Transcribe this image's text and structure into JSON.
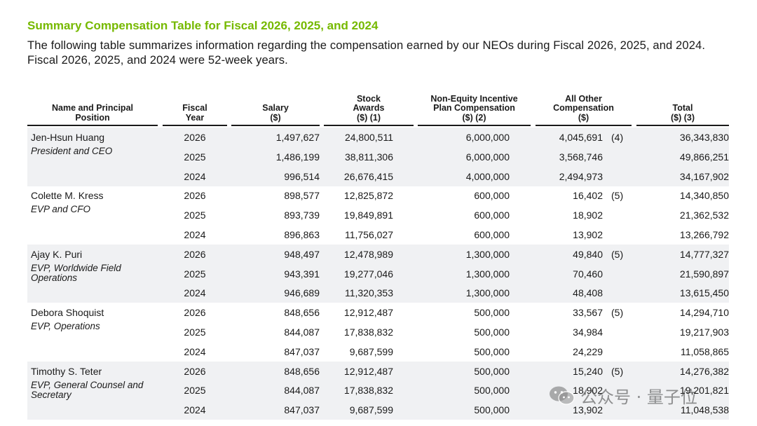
{
  "title": "Summary Compensation Table for Fiscal 2026, 2025, and 2024",
  "intro": "The following table summarizes information regarding the compensation earned by our NEOs during Fiscal 2026, 2025, and 2024.  Fiscal 2026, 2025, and 2024 were 52-week years.",
  "headers": {
    "name": [
      "Name and Principal",
      "Position"
    ],
    "fiscal_year": [
      "Fiscal",
      "Year"
    ],
    "salary": [
      "Salary",
      "($)"
    ],
    "stock_awards": [
      "Stock",
      "Awards",
      "($) (1)"
    ],
    "non_equity": [
      "Non-Equity Incentive",
      "Plan Compensation",
      "($) (2)"
    ],
    "all_other": [
      "All Other",
      "Compensation",
      "($)"
    ],
    "total": [
      "Total",
      "($) (3)"
    ]
  },
  "executives": [
    {
      "name": "Jen-Hsun Huang",
      "title_lines": [
        "President and CEO"
      ],
      "rows": [
        {
          "year": "2026",
          "salary": "1,497,627",
          "stock": "24,800,511",
          "nonequity": "6,000,000",
          "other": "4,045,691",
          "footnote": "(4)",
          "total": "36,343,830"
        },
        {
          "year": "2025",
          "salary": "1,486,199",
          "stock": "38,811,306",
          "nonequity": "6,000,000",
          "other": "3,568,746",
          "footnote": "",
          "total": "49,866,251"
        },
        {
          "year": "2024",
          "salary": "996,514",
          "stock": "26,676,415",
          "nonequity": "4,000,000",
          "other": "2,494,973",
          "footnote": "",
          "total": "34,167,902"
        }
      ]
    },
    {
      "name": "Colette M. Kress",
      "title_lines": [
        "EVP and CFO"
      ],
      "rows": [
        {
          "year": "2026",
          "salary": "898,577",
          "stock": "12,825,872",
          "nonequity": "600,000",
          "other": "16,402",
          "footnote": "(5)",
          "total": "14,340,850"
        },
        {
          "year": "2025",
          "salary": "893,739",
          "stock": "19,849,891",
          "nonequity": "600,000",
          "other": "18,902",
          "footnote": "",
          "total": "21,362,532"
        },
        {
          "year": "2024",
          "salary": "896,863",
          "stock": "11,756,027",
          "nonequity": "600,000",
          "other": "13,902",
          "footnote": "",
          "total": "13,266,792"
        }
      ]
    },
    {
      "name": "Ajay K. Puri",
      "title_lines": [
        "EVP, Worldwide Field",
        "Operations"
      ],
      "rows": [
        {
          "year": "2026",
          "salary": "948,497",
          "stock": "12,478,989",
          "nonequity": "1,300,000",
          "other": "49,840",
          "footnote": "(5)",
          "total": "14,777,327"
        },
        {
          "year": "2025",
          "salary": "943,391",
          "stock": "19,277,046",
          "nonequity": "1,300,000",
          "other": "70,460",
          "footnote": "",
          "total": "21,590,897"
        },
        {
          "year": "2024",
          "salary": "946,689",
          "stock": "11,320,353",
          "nonequity": "1,300,000",
          "other": "48,408",
          "footnote": "",
          "total": "13,615,450"
        }
      ]
    },
    {
      "name": "Debora Shoquist",
      "title_lines": [
        "EVP, Operations"
      ],
      "rows": [
        {
          "year": "2026",
          "salary": "848,656",
          "stock": "12,912,487",
          "nonequity": "500,000",
          "other": "33,567",
          "footnote": "(5)",
          "total": "14,294,710"
        },
        {
          "year": "2025",
          "salary": "844,087",
          "stock": "17,838,832",
          "nonequity": "500,000",
          "other": "34,984",
          "footnote": "",
          "total": "19,217,903"
        },
        {
          "year": "2024",
          "salary": "847,037",
          "stock": "9,687,599",
          "nonequity": "500,000",
          "other": "24,229",
          "footnote": "",
          "total": "11,058,865"
        }
      ]
    },
    {
      "name": "Timothy S. Teter",
      "title_lines": [
        "EVP, General Counsel and",
        "Secretary"
      ],
      "rows": [
        {
          "year": "2026",
          "salary": "848,656",
          "stock": "12,912,487",
          "nonequity": "500,000",
          "other": "15,240",
          "footnote": "(5)",
          "total": "14,276,382"
        },
        {
          "year": "2025",
          "salary": "844,087",
          "stock": "17,838,832",
          "nonequity": "500,000",
          "other": "18,902",
          "footnote": "",
          "total": "19,201,821"
        },
        {
          "year": "2024",
          "salary": "847,037",
          "stock": "9,687,599",
          "nonequity": "500,000",
          "other": "13,902",
          "footnote": "",
          "total": "11,048,538"
        }
      ]
    }
  ],
  "watermark": {
    "text": "公众号 · 量子位",
    "icon": "wechat-icon"
  }
}
